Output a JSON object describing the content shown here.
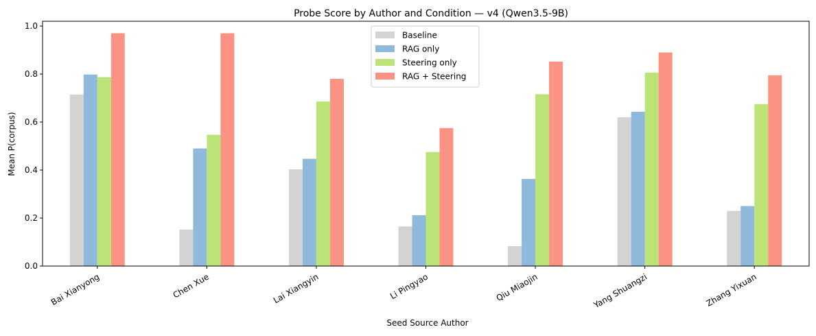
{
  "chart_data": {
    "type": "bar",
    "title": "Probe Score by Author and Condition — v4 (Qwen3.5-9B)",
    "xlabel": "Seed Source Author",
    "ylabel": "Mean P(corpus)",
    "ylim": [
      0,
      1.02
    ],
    "yticks": [
      0.0,
      0.2,
      0.4,
      0.6,
      0.8,
      1.0
    ],
    "ytick_labels": [
      "0.0",
      "0.2",
      "0.4",
      "0.6",
      "0.8",
      "1.0"
    ],
    "categories": [
      "Bai Xianyong",
      "Chen Xue",
      "Lai Xiangyin",
      "Li Pingyao",
      "Qiu Miaojin",
      "Yang Shuangzi",
      "Zhang Yixuan"
    ],
    "series": [
      {
        "name": "Baseline",
        "color": "#d3d3d3",
        "values": [
          0.715,
          0.152,
          0.403,
          0.165,
          0.083,
          0.62,
          0.23
        ]
      },
      {
        "name": "RAG only",
        "color": "#8fb9db",
        "values": [
          0.798,
          0.49,
          0.447,
          0.212,
          0.363,
          0.643,
          0.25
        ]
      },
      {
        "name": "Steering only",
        "color": "#bce377",
        "values": [
          0.787,
          0.547,
          0.686,
          0.475,
          0.716,
          0.806,
          0.675
        ]
      },
      {
        "name": "RAG + Steering",
        "color": "#fa9383",
        "values": [
          0.97,
          0.97,
          0.78,
          0.575,
          0.852,
          0.89,
          0.795
        ]
      }
    ],
    "grid": false,
    "legend": "top-center",
    "xtick_rotation_deg": 30
  }
}
